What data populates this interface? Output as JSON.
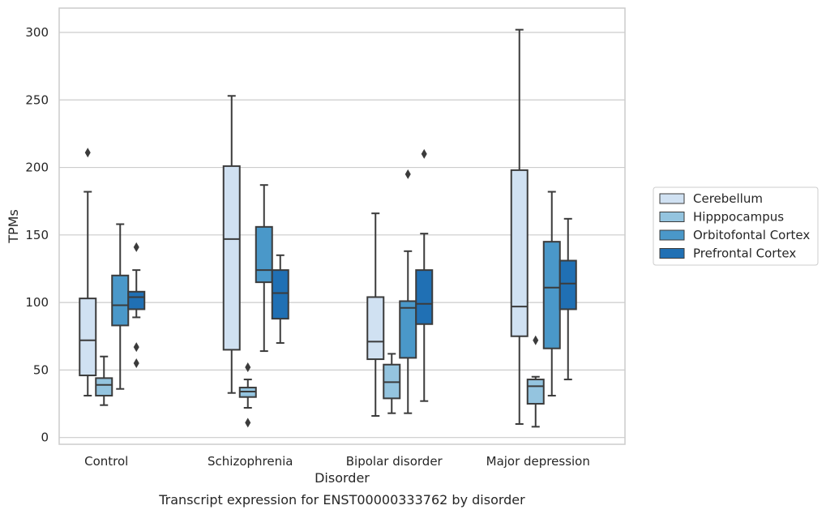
{
  "caption": "Transcript expression for ENST00000333762 by disorder",
  "chart_data": {
    "type": "box",
    "title": "",
    "xlabel": "Disorder",
    "ylabel": "TPMs",
    "ylim": [
      -5,
      318
    ],
    "yticks": [
      0,
      50,
      100,
      150,
      200,
      250,
      300
    ],
    "grid": "horizontal",
    "legend_position": "right",
    "categories": [
      "Control",
      "Schizophrenia",
      "Bipolar disorder",
      "Major depression"
    ],
    "series": [
      {
        "name": "Cerebellum",
        "color": "#d0e1f2",
        "boxes": [
          {
            "whislo": 31,
            "q1": 46,
            "med": 72,
            "q3": 103,
            "whishi": 182,
            "fliers": [
              211
            ]
          },
          {
            "whislo": 33,
            "q1": 65,
            "med": 147,
            "q3": 201,
            "whishi": 253,
            "fliers": []
          },
          {
            "whislo": 16,
            "q1": 58,
            "med": 71,
            "q3": 104,
            "whishi": 166,
            "fliers": []
          },
          {
            "whislo": 10,
            "q1": 75,
            "med": 97,
            "q3": 198,
            "whishi": 302,
            "fliers": []
          }
        ]
      },
      {
        "name": "Hipppocampus",
        "color": "#94c4df",
        "boxes": [
          {
            "whislo": 24,
            "q1": 31,
            "med": 39,
            "q3": 44,
            "whishi": 60,
            "fliers": []
          },
          {
            "whislo": 22,
            "q1": 30,
            "med": 34,
            "q3": 37,
            "whishi": 43,
            "fliers": [
              52,
              11
            ]
          },
          {
            "whislo": 18,
            "q1": 29,
            "med": 41,
            "q3": 54,
            "whishi": 62,
            "fliers": []
          },
          {
            "whislo": 8,
            "q1": 25,
            "med": 38,
            "q3": 43,
            "whishi": 45,
            "fliers": [
              72
            ]
          }
        ]
      },
      {
        "name": "Orbitofontal Cortex",
        "color": "#4a98c9",
        "boxes": [
          {
            "whislo": 36,
            "q1": 83,
            "med": 98,
            "q3": 120,
            "whishi": 158,
            "fliers": []
          },
          {
            "whislo": 64,
            "q1": 115,
            "med": 124,
            "q3": 156,
            "whishi": 187,
            "fliers": []
          },
          {
            "whislo": 18,
            "q1": 59,
            "med": 96,
            "q3": 101,
            "whishi": 138,
            "fliers": [
              195
            ]
          },
          {
            "whislo": 31,
            "q1": 66,
            "med": 111,
            "q3": 145,
            "whishi": 182,
            "fliers": []
          }
        ]
      },
      {
        "name": "Prefrontal Cortex",
        "color": "#2070b4",
        "boxes": [
          {
            "whislo": 89,
            "q1": 95,
            "med": 104,
            "q3": 108,
            "whishi": 124,
            "fliers": [
              141,
              67,
              55
            ]
          },
          {
            "whislo": 70,
            "q1": 88,
            "med": 107,
            "q3": 124,
            "whishi": 135,
            "fliers": []
          },
          {
            "whislo": 27,
            "q1": 84,
            "med": 99,
            "q3": 124,
            "whishi": 151,
            "fliers": [
              210
            ]
          },
          {
            "whislo": 43,
            "q1": 95,
            "med": 114,
            "q3": 131,
            "whishi": 162,
            "fliers": []
          }
        ]
      }
    ]
  }
}
